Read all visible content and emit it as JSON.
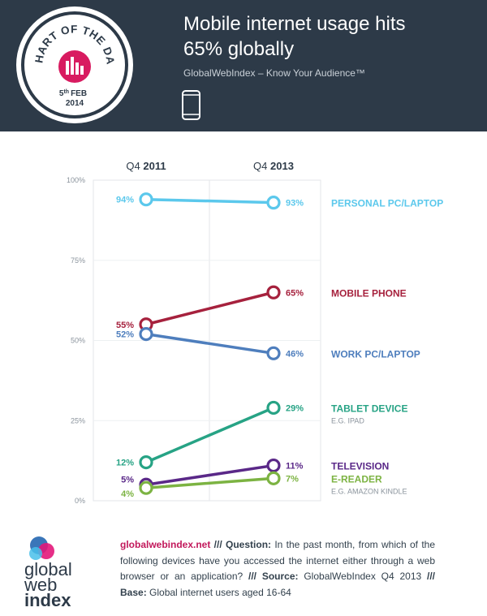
{
  "header": {
    "badge_text": "CHART OF THE DAY",
    "date_day": "5",
    "date_sup": "th",
    "date_month": "FEB",
    "date_year": "2014",
    "title_line1": "Mobile internet usage hits",
    "title_line2": "65% globally",
    "subtitle": "GlobalWebIndex – Know Your Audience™"
  },
  "chart_data": {
    "type": "line",
    "title": "Mobile internet usage hits 65% globally",
    "categories": [
      {
        "prefix": "Q4 ",
        "year": "2011"
      },
      {
        "prefix": "Q4 ",
        "year": "2013"
      }
    ],
    "ylim": [
      0,
      100
    ],
    "yticks": [
      {
        "value": 0,
        "label": "0%"
      },
      {
        "value": 25,
        "label": "25%"
      },
      {
        "value": 50,
        "label": "50%"
      },
      {
        "value": 75,
        "label": "75%"
      },
      {
        "value": 100,
        "label": "100%"
      }
    ],
    "grid": true,
    "series": [
      {
        "name": "PERSONAL PC/LAPTOP",
        "sub": "",
        "color": "#5bc8ec",
        "values": [
          94,
          93
        ],
        "labels": [
          "94%",
          "93%"
        ],
        "start_label_dy": 0,
        "end_label_dy": 0,
        "legend_value": 93
      },
      {
        "name": "MOBILE PHONE",
        "sub": "",
        "color": "#a6213d",
        "values": [
          55,
          65
        ],
        "labels": [
          "55%",
          "65%"
        ],
        "start_label_dy": 0,
        "end_label_dy": 0,
        "legend_value": 65
      },
      {
        "name": "WORK PC/LAPTOP",
        "sub": "",
        "color": "#4e7ebd",
        "values": [
          52,
          46
        ],
        "labels": [
          "52%",
          "46%"
        ],
        "start_label_dy": 0,
        "end_label_dy": 0,
        "legend_value": 46
      },
      {
        "name": "TABLET DEVICE",
        "sub": "E.G. IPAD",
        "color": "#27a385",
        "values": [
          12,
          29
        ],
        "labels": [
          "12%",
          "29%"
        ],
        "start_label_dy": 0,
        "end_label_dy": 0,
        "legend_value": 29
      },
      {
        "name": "TELEVISION",
        "sub": "",
        "color": "#5a2888",
        "values": [
          5,
          11
        ],
        "labels": [
          "5%",
          "11%"
        ],
        "start_label_dy": -7,
        "end_label_dy": 0,
        "legend_value": 11
      },
      {
        "name": "E-READER",
        "sub": "E.G. AMAZON KINDLE",
        "color": "#7cb342",
        "values": [
          4,
          7
        ],
        "labels": [
          "4%",
          "7%"
        ],
        "start_label_dy": 7,
        "end_label_dy": 0,
        "legend_value": 7
      }
    ]
  },
  "footer": {
    "logo_line1": "global",
    "logo_line2": "web",
    "logo_line3": "index",
    "link": "globalwebindex.net",
    "sep1": " /// ",
    "question_label": "Question:",
    "question_text": " In the past month, from which of the following devices have you accessed the internet either through a web browser or an application?",
    "sep2": " /// ",
    "source_label": "Source:",
    "source_text": " GlobalWebIndex Q4 2013",
    "sep3": " /// ",
    "base_label": "Base:",
    "base_text": " Global internet users aged 16-64"
  }
}
